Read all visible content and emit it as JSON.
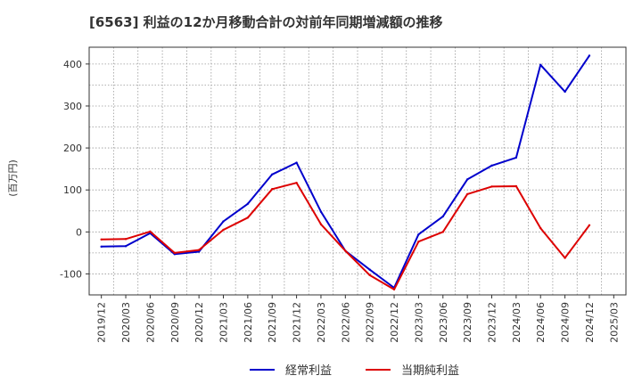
{
  "chart_data": {
    "type": "line",
    "title": "[6563]  利益の12か月移動合計の対前年同期増減額の推移",
    "ylabel": "(百万円)",
    "xlabel": "",
    "ylim": [
      -150,
      440
    ],
    "yticks": [
      -100,
      0,
      100,
      200,
      300,
      400
    ],
    "grid": true,
    "legend_position": "bottom",
    "x": [
      "2019/12",
      "2020/03",
      "2020/06",
      "2020/09",
      "2020/12",
      "2021/03",
      "2021/06",
      "2021/09",
      "2021/12",
      "2022/03",
      "2022/06",
      "2022/09",
      "2022/12",
      "2023/03",
      "2023/06",
      "2023/09",
      "2023/12",
      "2024/03",
      "2024/06",
      "2024/09",
      "2024/12",
      "2025/03"
    ],
    "series": [
      {
        "name": "経常利益",
        "color": "#0000cc",
        "values": [
          -35,
          -34,
          -3,
          -53,
          -47,
          25,
          67,
          137,
          165,
          48,
          -45,
          -90,
          -133,
          -6,
          37,
          125,
          158,
          177,
          398,
          334,
          420,
          null
        ]
      },
      {
        "name": "当期純利益",
        "color": "#dd0000",
        "values": [
          -18,
          -17,
          1,
          -50,
          -43,
          5,
          34,
          102,
          117,
          18,
          -45,
          -103,
          -137,
          -23,
          0,
          90,
          108,
          109,
          9,
          -62,
          16,
          null
        ]
      }
    ]
  }
}
